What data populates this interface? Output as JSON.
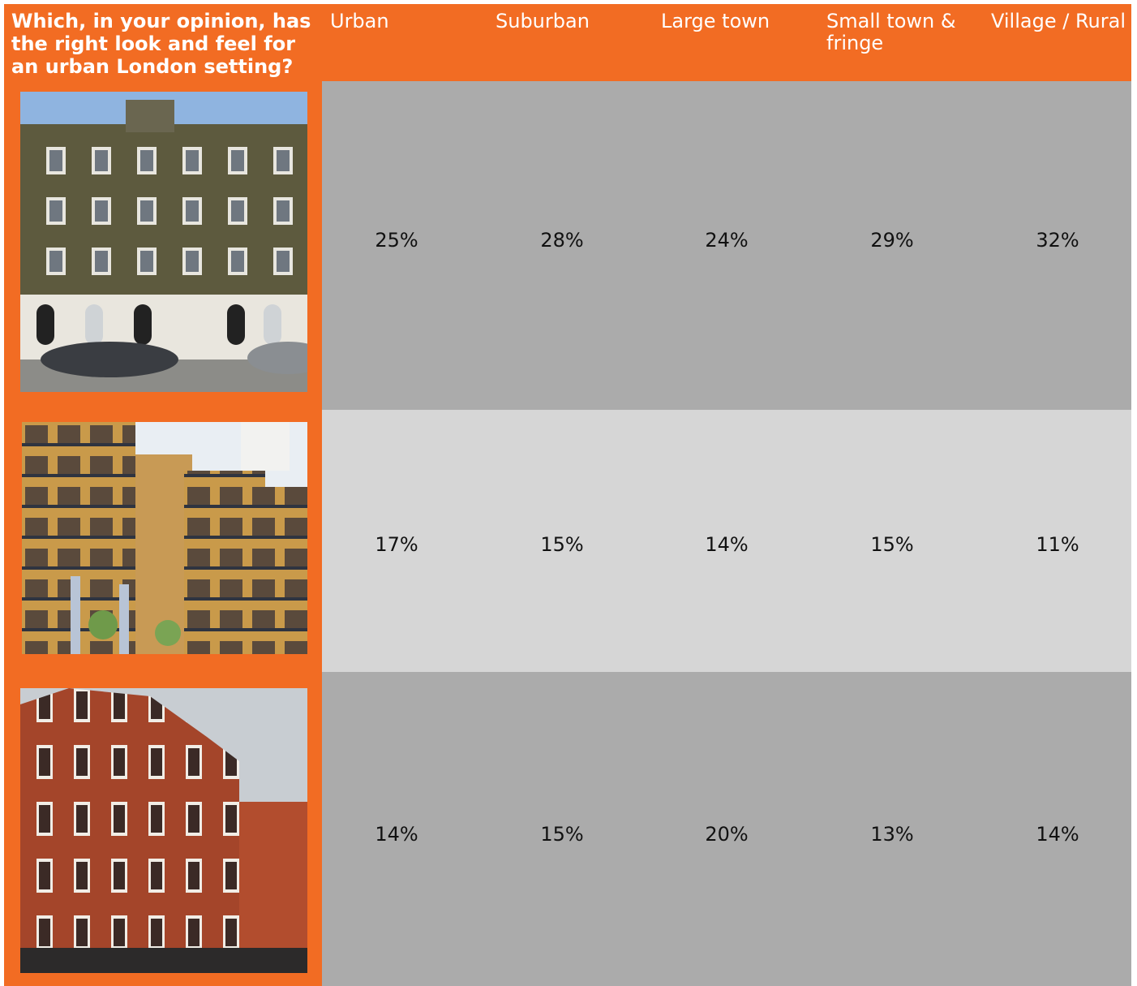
{
  "header": {
    "question": "Which, in your opinion, has the right look and feel for an urban London setting?",
    "columns": [
      "Urban",
      "Suburban",
      "Large town",
      "Small town & fringe",
      "Village / Rural"
    ]
  },
  "rows": [
    {
      "values": [
        "25%",
        "28%",
        "24%",
        "29%",
        "32%"
      ]
    },
    {
      "values": [
        "17%",
        "15%",
        "14%",
        "15%",
        "11%"
      ]
    },
    {
      "values": [
        "14%",
        "15%",
        "20%",
        "13%",
        "14%"
      ]
    }
  ]
}
